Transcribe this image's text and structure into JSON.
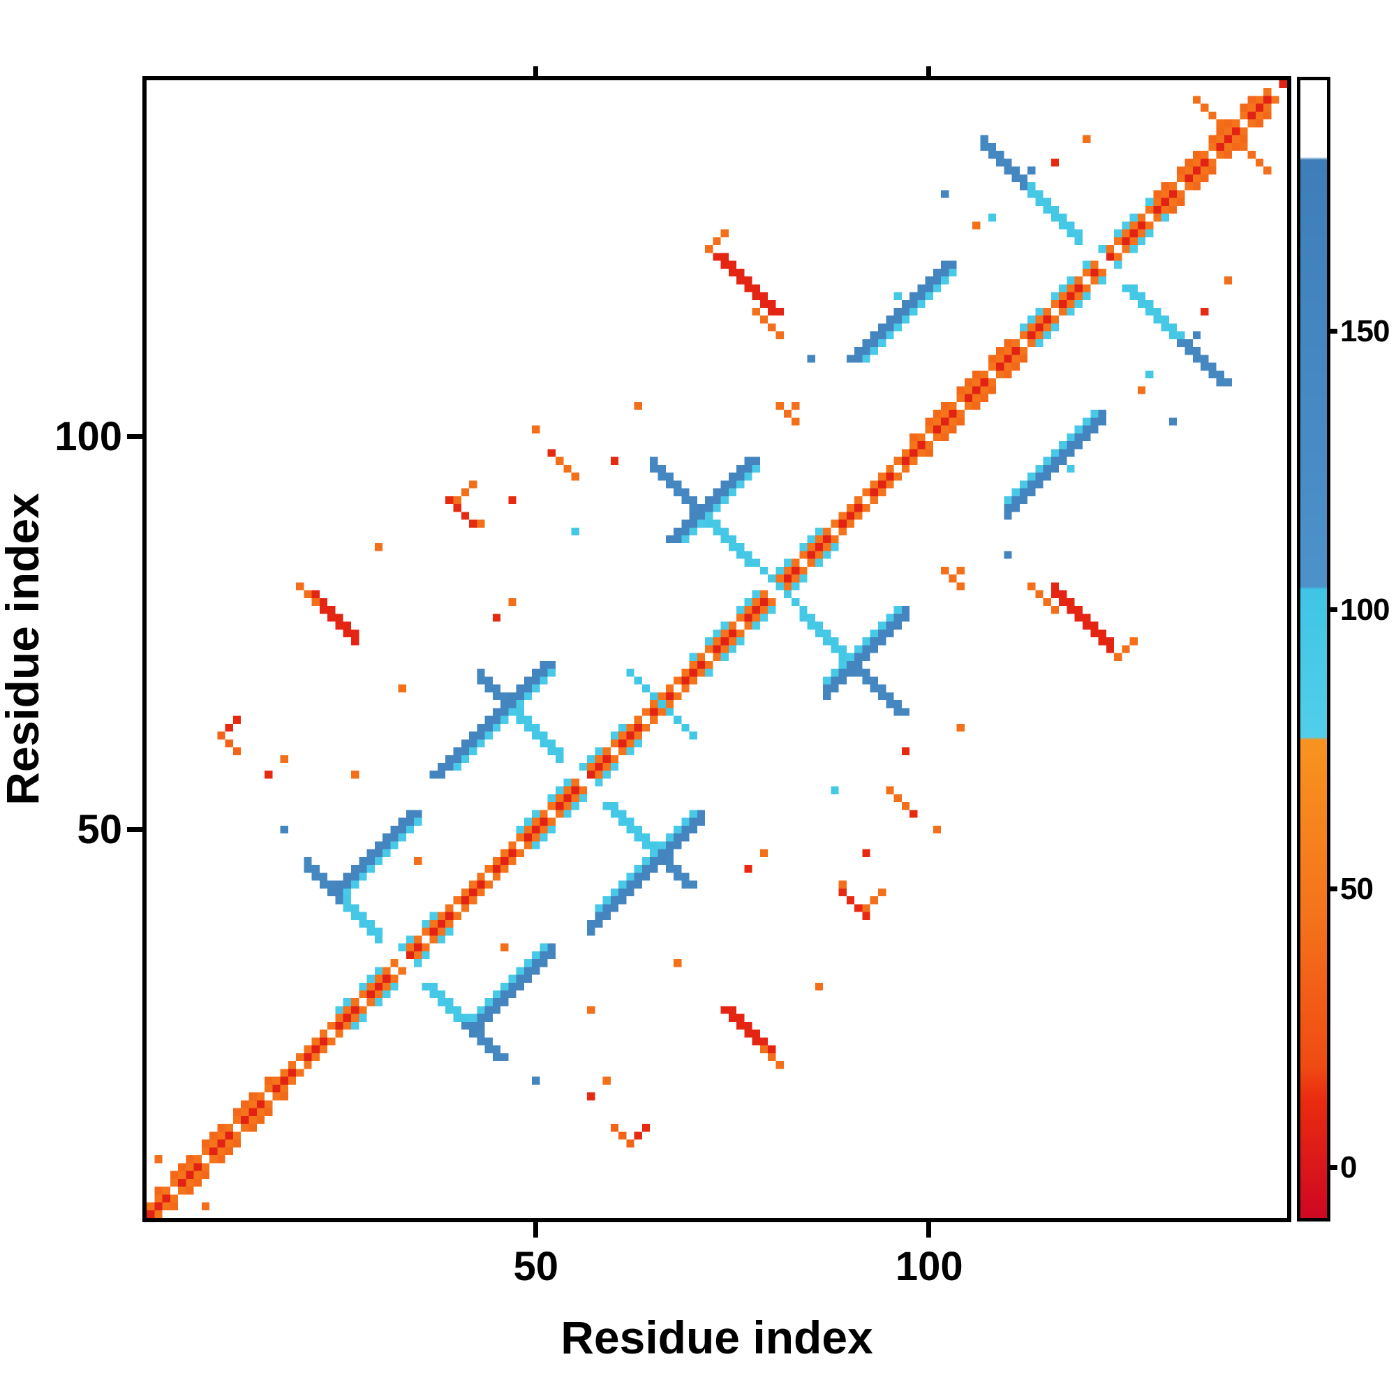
{
  "figure": {
    "xlabel": "Residue index",
    "ylabel": "Residue index",
    "x_ticks": [
      50,
      100
    ],
    "y_ticks": [
      50,
      100
    ]
  },
  "chart_data": {
    "type": "heatmap",
    "title": "",
    "xlabel": "Residue index",
    "ylabel": "Residue index",
    "matrix_size": 145,
    "x_range": [
      1,
      145
    ],
    "y_range": [
      1,
      145
    ],
    "symmetric": true,
    "grid": false,
    "background": "#ffffff",
    "legend_position": "right-colorbar",
    "colorbar": {
      "min": -9,
      "max": 195,
      "ticks": [
        0,
        50,
        100,
        150
      ],
      "stops": [
        [
          -9,
          "#cf0822"
        ],
        [
          12,
          "#ea2c10"
        ],
        [
          18,
          "#ef4b14"
        ],
        [
          45,
          "#f4731b"
        ],
        [
          77,
          "#f8941f"
        ],
        [
          77.001,
          "#52cfe9"
        ],
        [
          104,
          "#3fc5e5"
        ],
        [
          104.001,
          "#4e92ca"
        ],
        [
          150,
          "#4486c0"
        ],
        [
          181,
          "#3d7eb8"
        ],
        [
          181.001,
          "#ffffff"
        ],
        [
          195,
          "#ffffff"
        ]
      ]
    },
    "strokes": [
      {
        "i": 1,
        "j": 2,
        "d": "p",
        "n": 143,
        "v": 45,
        "w": 1
      },
      {
        "i": 2,
        "j": 4,
        "d": "p",
        "n": 15,
        "v": 38,
        "w": 1
      },
      {
        "i": 98,
        "j": 100,
        "d": "p",
        "n": 13,
        "v": 38,
        "w": 1
      },
      {
        "i": 129,
        "j": 131,
        "d": "p",
        "n": 13,
        "v": 38,
        "w": 1
      },
      {
        "i": 27,
        "j": 25,
        "d": "p",
        "n": 13,
        "v": 88,
        "w": 1
      },
      {
        "i": 49,
        "j": 47,
        "d": "p",
        "n": 15,
        "v": 88,
        "w": 1
      },
      {
        "i": 72,
        "j": 70,
        "d": "p",
        "n": 17,
        "v": 88,
        "w": 1
      },
      {
        "i": 114,
        "j": 112,
        "d": "p",
        "n": 17,
        "v": 88,
        "w": 1
      },
      {
        "i": 1,
        "j": 1,
        "d": "p",
        "n": 145,
        "v": 6,
        "w": 1
      },
      {
        "i": 26,
        "j": 40,
        "d": "a",
        "n": 15,
        "v": 95,
        "w": 2
      },
      {
        "i": 48,
        "j": 64,
        "d": "a",
        "n": 17,
        "v": 95,
        "w": 2
      },
      {
        "i": 71,
        "j": 90,
        "d": "a",
        "n": 20,
        "v": 95,
        "w": 2
      },
      {
        "i": 113,
        "j": 131,
        "d": "a",
        "n": 19,
        "v": 95,
        "w": 2
      },
      {
        "i": 21,
        "j": 45,
        "d": "a",
        "n": 5,
        "v": 145,
        "w": 2
      },
      {
        "i": 43,
        "j": 69,
        "d": "a",
        "n": 5,
        "v": 145,
        "w": 2
      },
      {
        "i": 65,
        "j": 96,
        "d": "a",
        "n": 6,
        "v": 145,
        "w": 2
      },
      {
        "i": 107,
        "j": 137,
        "d": "a",
        "n": 6,
        "v": 145,
        "w": 2
      },
      {
        "i": 42,
        "j": 24,
        "d": "p",
        "n": 11,
        "v": 152,
        "w": 2
      },
      {
        "i": 57,
        "j": 37,
        "d": "p",
        "n": 15,
        "v": 152,
        "w": 2
      },
      {
        "i": 87,
        "j": 67,
        "d": "p",
        "n": 11,
        "v": 152,
        "w": 2
      },
      {
        "i": 110,
        "j": 90,
        "d": "p",
        "n": 13,
        "v": 152,
        "w": 2
      },
      {
        "i": 42,
        "j": 26,
        "d": "p",
        "n": 10,
        "v": 92,
        "w": 1
      },
      {
        "i": 58,
        "j": 40,
        "d": "p",
        "n": 13,
        "v": 92,
        "w": 1
      },
      {
        "i": 87,
        "j": 69,
        "d": "p",
        "n": 10,
        "v": 92,
        "w": 1
      },
      {
        "i": 110,
        "j": 92,
        "d": "p",
        "n": 12,
        "v": 92,
        "w": 1
      },
      {
        "i": 62,
        "j": 70,
        "d": "a",
        "n": 9,
        "v": 98,
        "w": 1
      },
      {
        "i": 22,
        "j": 79,
        "d": "a",
        "n": 6,
        "v": 8,
        "w": 2
      },
      {
        "i": 20,
        "j": 81,
        "d": "a",
        "n": 3,
        "v": 42,
        "w": 1
      },
      {
        "i": 116,
        "j": 80,
        "d": "a",
        "n": 8,
        "v": 8,
        "w": 2
      },
      {
        "i": 113,
        "j": 81,
        "d": "a",
        "n": 4,
        "v": 42,
        "w": 1
      },
      {
        "i": 124,
        "j": 72,
        "d": "p",
        "n": 3,
        "v": 42,
        "w": 1
      },
      {
        "i": 89,
        "j": 42,
        "d": "a",
        "n": 4,
        "v": 10,
        "w": 1
      },
      {
        "i": 92,
        "j": 40,
        "d": "p",
        "n": 3,
        "v": 42,
        "w": 1
      },
      {
        "i": 60,
        "j": 12,
        "d": "a",
        "n": 3,
        "v": 35,
        "w": 1
      },
      {
        "i": 63,
        "j": 11,
        "d": "p",
        "n": 2,
        "v": 10,
        "w": 1
      },
      {
        "i": 95,
        "j": 55,
        "d": "a",
        "n": 3,
        "v": 42,
        "w": 1
      },
      {
        "i": 102,
        "j": 83,
        "d": "a",
        "n": 3,
        "v": 42,
        "w": 1
      },
      {
        "i": 134,
        "j": 143,
        "d": "a",
        "n": 4,
        "v": 42,
        "w": 1
      }
    ],
    "singles": [
      {
        "i": 16,
        "j": 57,
        "v": 10
      },
      {
        "i": 18,
        "j": 59,
        "v": 42
      },
      {
        "i": 35,
        "j": 46,
        "v": 42
      },
      {
        "i": 50,
        "j": 18,
        "v": 152
      },
      {
        "i": 57,
        "j": 27,
        "v": 42
      },
      {
        "i": 68,
        "j": 33,
        "v": 42
      },
      {
        "i": 77,
        "j": 45,
        "v": 10
      },
      {
        "i": 79,
        "j": 47,
        "v": 42
      },
      {
        "i": 92,
        "j": 47,
        "v": 10
      },
      {
        "i": 101,
        "j": 50,
        "v": 42
      },
      {
        "i": 97,
        "j": 60,
        "v": 10
      },
      {
        "i": 88,
        "j": 55,
        "v": 95
      },
      {
        "i": 104,
        "j": 63,
        "v": 42
      },
      {
        "i": 110,
        "j": 85,
        "v": 152
      },
      {
        "i": 131,
        "j": 102,
        "v": 152
      },
      {
        "i": 135,
        "j": 116,
        "v": 10
      },
      {
        "i": 138,
        "j": 120,
        "v": 42
      },
      {
        "i": 128,
        "j": 108,
        "v": 95
      },
      {
        "i": 113,
        "j": 134,
        "v": 152
      },
      {
        "i": 106,
        "j": 127,
        "v": 42
      },
      {
        "i": 96,
        "j": 118,
        "v": 95
      },
      {
        "i": 83,
        "j": 104,
        "v": 42
      },
      {
        "i": 30,
        "j": 86,
        "v": 42
      },
      {
        "i": 43,
        "j": 89,
        "v": 42
      },
      {
        "i": 52,
        "j": 98,
        "v": 10
      },
      {
        "i": 8,
        "j": 2,
        "v": 42
      }
    ],
    "white_hatch": {
      "start": 4,
      "every": 4,
      "len": 3,
      "wide_centers": [
        33,
        56,
        80,
        122
      ],
      "wide_len": 5
    }
  }
}
